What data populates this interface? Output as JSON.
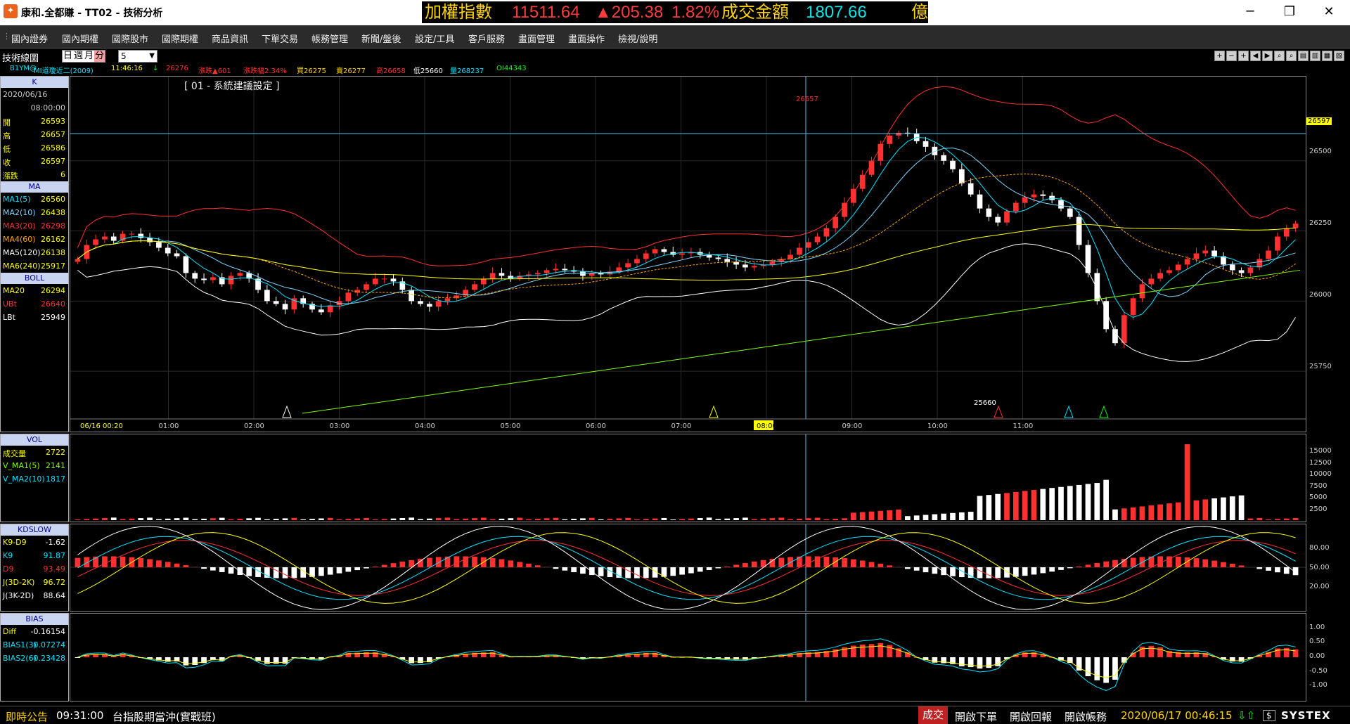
{
  "window": {
    "title": "康和.全都賺 - TT02 - 技術分析",
    "icon": "app-logo-icon",
    "controls": [
      "minimize-icon",
      "restore-icon",
      "close-icon"
    ]
  },
  "ticker": {
    "label": "加權指數",
    "value": "11511.64",
    "change": "▲205.38",
    "change_pct": "1.82%",
    "turnover_label": "成交金額",
    "turnover": "1807.66",
    "unit": "億",
    "colors": {
      "label": "#ffd400",
      "value": "#ff3b3b",
      "turnover": "#00e5e5"
    }
  },
  "menu": [
    "國內證券",
    "國內期權",
    "國際股市",
    "國際期權",
    "商品資訊",
    "下單交易",
    "帳務管理",
    "新聞/盤後",
    "設定/工具",
    "客戶服務",
    "畫面管理",
    "畫面操作",
    "檢視/說明"
  ],
  "toolbar": {
    "panel_title": "技術線圖",
    "periods": [
      "日",
      "週",
      "月",
      "分"
    ],
    "active_period": "分",
    "interval": "5"
  },
  "info": {
    "symbol": "B1YM@",
    "name": "MI道瓊近二(2009)",
    "time": "11:46:16",
    "arrow": "↓",
    "last": "26276",
    "chg": "漲跌▲601",
    "chg_pct": "漲跌幅2.34%",
    "bid": "買26275",
    "ask": "賣26277",
    "high": "高26658",
    "low": "低25660",
    "volume": "量268237",
    "oi": "OI44343"
  },
  "chart_title": "[ 01 - 系統建議設定 ]",
  "k_panel": {
    "header": "K",
    "date": "2020/06/16",
    "time": "08:00:00",
    "rows": [
      {
        "k": "開",
        "v": "26593",
        "arrow": "↑"
      },
      {
        "k": "高",
        "v": "26657",
        "arrow": "↑"
      },
      {
        "k": "低",
        "v": "26586",
        "arrow": "↑"
      },
      {
        "k": "收",
        "v": "26597",
        "arrow": "↑"
      },
      {
        "k": "漲跌",
        "v": "6",
        "arrow": "↓"
      }
    ]
  },
  "ma_panel": {
    "header": "MA",
    "rows": [
      {
        "k": "MA1(5)",
        "v": "26560",
        "color": "#00e5ff"
      },
      {
        "k": "MA2(10)",
        "v": "26438",
        "color": "#7fd7ff"
      },
      {
        "k": "MA3(20)",
        "v": "26298",
        "color": "#ff3030"
      },
      {
        "k": "MA4(60)",
        "v": "26162",
        "color": "#ffa500"
      },
      {
        "k": "MA5(120)",
        "v": "26138",
        "color": "#ffffff"
      },
      {
        "k": "MA6(240)",
        "v": "25917",
        "color": "#ffff00"
      }
    ]
  },
  "boll_panel": {
    "header": "BOLL",
    "rows": [
      {
        "k": "MA20",
        "v": "26294",
        "color": "#ffff00"
      },
      {
        "k": "UBt",
        "v": "26640",
        "color": "#ff3030"
      },
      {
        "k": "LBt",
        "v": "25949",
        "color": "#ffffff"
      }
    ]
  },
  "vol_panel": {
    "header": "VOL",
    "rows": [
      {
        "k": "成交量",
        "v": "2722",
        "color": "#ffff00"
      },
      {
        "k": "V_MA1(5)",
        "v": "2141",
        "color": "#7fff00"
      },
      {
        "k": "V_MA2(10)",
        "v": "1817",
        "color": "#00e5ff"
      }
    ]
  },
  "kd_panel": {
    "header": "KDSLOW",
    "rows": [
      {
        "k": "K9-D9",
        "v": "-1.62",
        "color": "#ffff00"
      },
      {
        "k": "K9",
        "v": "91.87",
        "color": "#00e5ff"
      },
      {
        "k": "D9",
        "v": "93.49",
        "color": "#ff3030"
      },
      {
        "k": "J(3D-2K)",
        "v": "96.72",
        "color": "#ffff00"
      },
      {
        "k": "J(3K-2D)",
        "v": "88.64",
        "color": "#ffffff"
      }
    ]
  },
  "bias_panel": {
    "header": "BIAS",
    "rows": [
      {
        "k": "Diff",
        "v": "-0.16154",
        "color": "#ffff00"
      },
      {
        "k": "BIAS1(3)",
        "v": "0.07274",
        "color": "#00e5ff"
      },
      {
        "k": "BIAS2(6)",
        "v": "0.23428",
        "color": "#00e5ff"
      }
    ]
  },
  "price_axis": {
    "ticks": [
      "26500",
      "26250",
      "26000",
      "25750"
    ],
    "current": "26597"
  },
  "vol_axis": [
    "15000",
    "12500",
    "10000",
    "7500",
    "5000",
    "2500"
  ],
  "kd_axis": [
    "80.00",
    "50.00",
    "20.00"
  ],
  "bias_axis": [
    "1.00",
    "0.50",
    "0.00",
    "-0.50",
    "-1.00"
  ],
  "time_axis": [
    "06/16 00:20",
    "01:00",
    "02:00",
    "03:00",
    "04:00",
    "05:00",
    "06:00",
    "07:00",
    "08:00",
    "09:00",
    "10:00",
    "11:00"
  ],
  "annotations": {
    "high_label": "26657",
    "low_label": "25660"
  },
  "chart_data": {
    "type": "candlestick",
    "interval": "5 minute",
    "ylim": [
      25580,
      26800
    ],
    "high": 26657,
    "low": 25660,
    "closes": [
      26150,
      26200,
      26220,
      26230,
      26215,
      26240,
      26240,
      26225,
      26210,
      26190,
      26170,
      26160,
      26100,
      26080,
      26075,
      26085,
      26060,
      26090,
      26100,
      26080,
      26040,
      26000,
      25990,
      25970,
      26010,
      25990,
      25970,
      25960,
      25985,
      26000,
      26030,
      26040,
      26060,
      26080,
      26080,
      26070,
      26040,
      26000,
      25990,
      25980,
      26000,
      26010,
      26020,
      26040,
      26060,
      26080,
      26100,
      26090,
      26080,
      26090,
      26095,
      26100,
      26110,
      26115,
      26110,
      26105,
      26090,
      26100,
      26095,
      26105,
      26120,
      26135,
      26150,
      26170,
      26185,
      26175,
      26165,
      26170,
      26175,
      26165,
      26155,
      26150,
      26140,
      26130,
      26120,
      26125,
      26130,
      26140,
      26150,
      26165,
      26190,
      26210,
      26230,
      26260,
      26300,
      26350,
      26400,
      26450,
      26500,
      26560,
      26590,
      26600,
      26597,
      26570,
      26550,
      26520,
      26500,
      26470,
      26420,
      26380,
      26330,
      26300,
      26280,
      26320,
      26350,
      26370,
      26380,
      26375,
      26360,
      26330,
      26300,
      26200,
      26100,
      26000,
      25900,
      25850,
      25950,
      26010,
      26060,
      26080,
      26100,
      26110,
      26130,
      26150,
      26170,
      26180,
      26160,
      26130,
      26110,
      26100,
      26120,
      26150,
      26180,
      26230,
      26260,
      26276
    ],
    "vol_rows_visible": true
  },
  "status": {
    "label": "即時公告",
    "time": "09:31:00",
    "message": "台指股期當沖(實戰班)",
    "trade": "成交",
    "buttons": [
      "開啟下單",
      "開啟回報",
      "開啟帳務"
    ],
    "datetime": "2020/06/17 00:46:15",
    "brand": "SYSTEX"
  }
}
